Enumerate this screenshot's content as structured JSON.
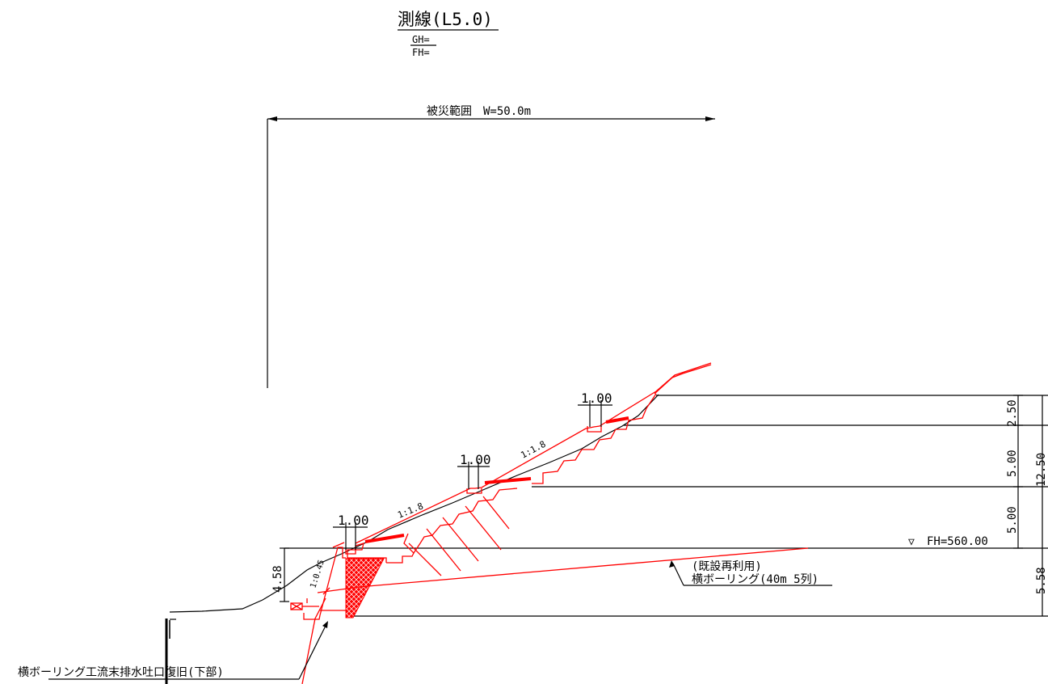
{
  "title": {
    "main": "測線(L5.0)",
    "gh": "GH=",
    "fh": "FH="
  },
  "damage_range": {
    "label": "被災範囲　W=50.0m"
  },
  "berm_widths": [
    "1.00",
    "1.00",
    "1.00"
  ],
  "slope_ratios": [
    "1:1.8",
    "1:1.8",
    "1:0.45"
  ],
  "heights": {
    "h250": "2.50",
    "h500a": "5.00",
    "h500b": "5.00",
    "h1250": "12.50",
    "h558": "5.58",
    "h458": "4.58"
  },
  "fh_level": "FH=560.00",
  "fh_marker": "▽",
  "boring": {
    "line1": "(既設再利用)",
    "line2": "横ボーリング(40m 5列)"
  },
  "outlet": {
    "label": "横ボーリング工流末排水吐口復旧(下部)"
  },
  "colors": {
    "design_line": "#ff0000",
    "existing_ground": "#000000"
  }
}
